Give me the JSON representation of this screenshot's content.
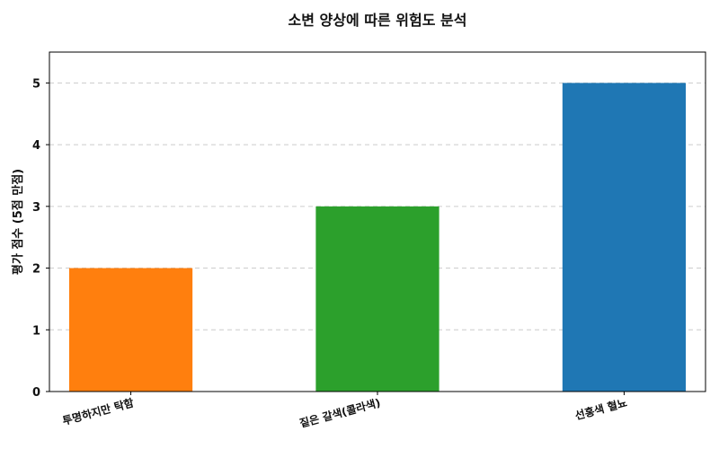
{
  "chart_data": {
    "type": "bar",
    "title": "소변 양상에 따른 위험도 분석",
    "xlabel": "",
    "ylabel": "평가 점수 (5점 만점)",
    "categories": [
      "투명하지만 탁함",
      "짙은 갈색(콜라색)",
      "선홍색 혈뇨"
    ],
    "values": [
      2,
      3,
      5
    ],
    "colors": [
      "#ff7f0e",
      "#2ca02c",
      "#1f77b4"
    ],
    "ylim": [
      0,
      5.5
    ],
    "yticks": [
      0,
      1,
      2,
      3,
      4,
      5
    ],
    "grid": "y-dashed",
    "legend": "none"
  }
}
